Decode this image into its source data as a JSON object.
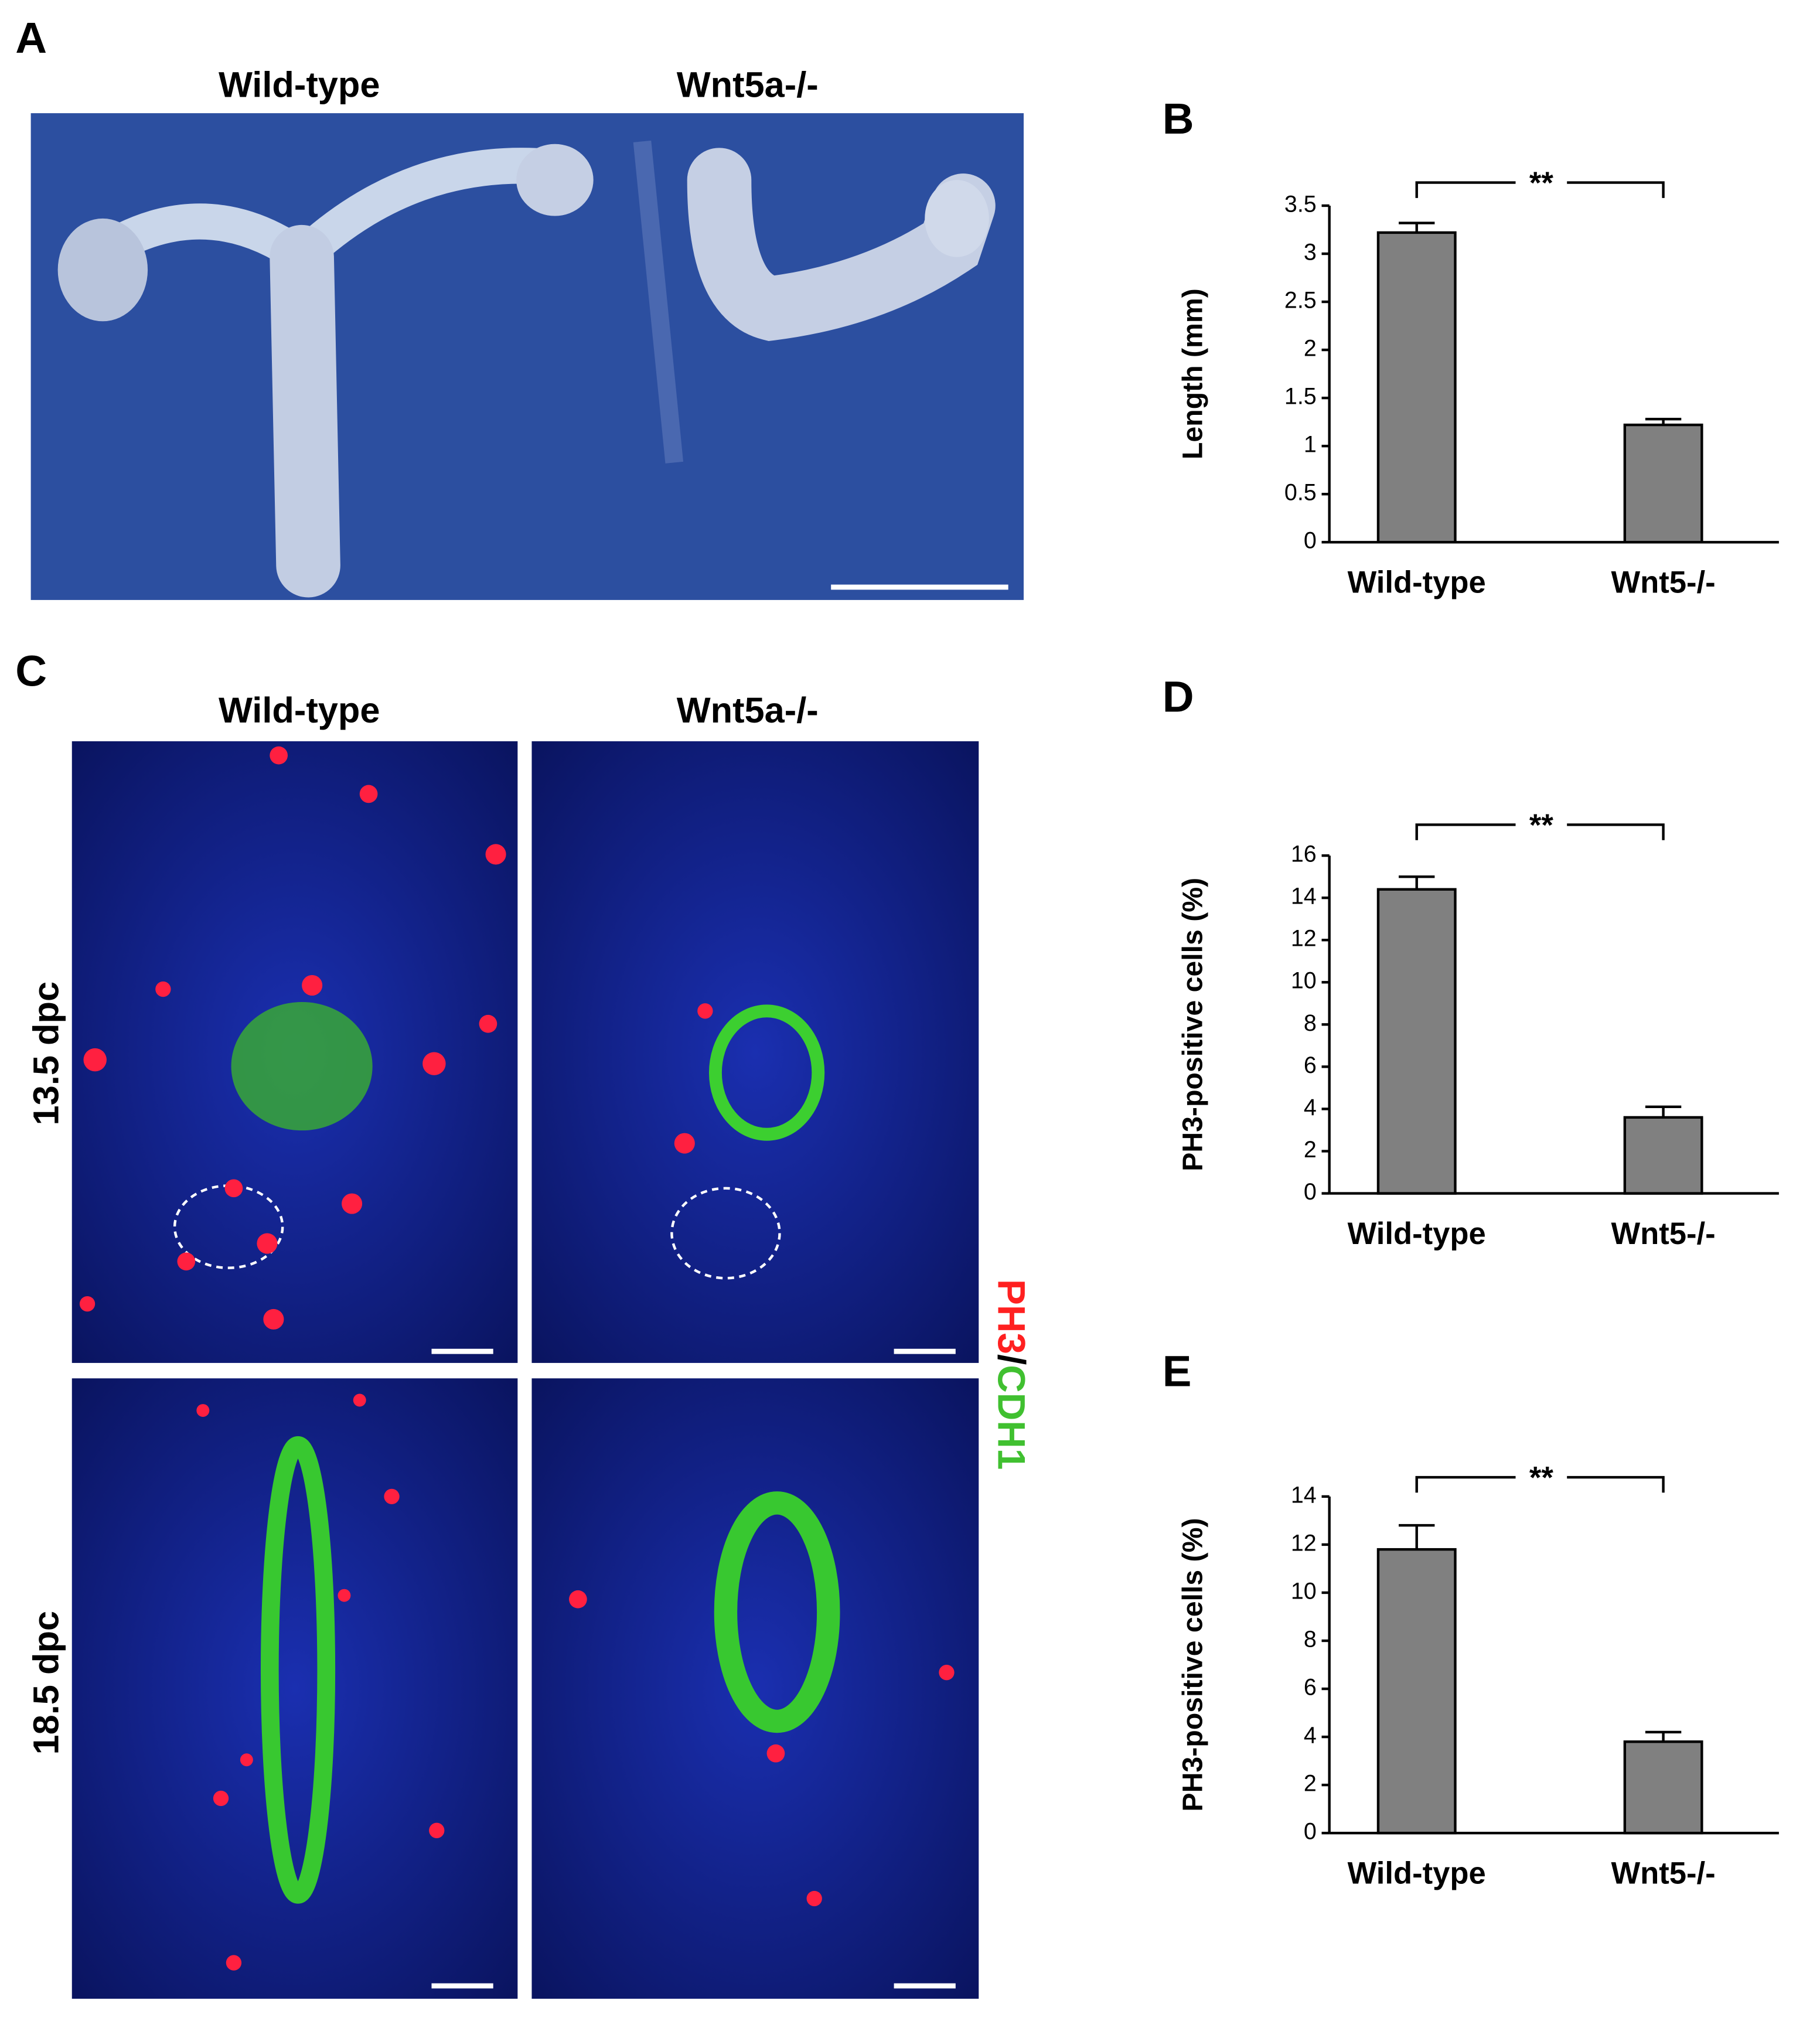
{
  "panels": {
    "a": {
      "label": "A",
      "columns": [
        "Wild-type",
        "Wnt5a-/-"
      ]
    },
    "b": {
      "label": "B"
    },
    "c": {
      "label": "C",
      "columns": [
        "Wild-type",
        "Wnt5a-/-"
      ],
      "rows": [
        "13.5 dpc",
        "18.5 dpc"
      ],
      "stain": [
        "PH3",
        "/",
        "CDH1"
      ]
    },
    "d": {
      "label": "D"
    },
    "e": {
      "label": "E"
    }
  },
  "chart_data": [
    {
      "type": "bar",
      "ylabel": "Length (mm)",
      "categories": [
        "Wild-type",
        "Wnt5-/-"
      ],
      "values": [
        3.22,
        1.22
      ],
      "errors": [
        0.1,
        0.06
      ],
      "color": "#808080",
      "ylim": [
        0,
        3.5
      ],
      "yticks": [
        0,
        0.5,
        1,
        1.5,
        2,
        2.5,
        3,
        3.5
      ],
      "annotation": "**"
    },
    {
      "type": "bar",
      "ylabel": "PH3-positive cells (%)",
      "categories": [
        "Wild-type",
        "Wnt5-/-"
      ],
      "values": [
        14.4,
        3.6
      ],
      "errors": [
        0.6,
        0.5
      ],
      "color": "#808080",
      "ylim": [
        0,
        16
      ],
      "yticks": [
        0,
        2,
        4,
        6,
        8,
        10,
        12,
        14,
        16
      ],
      "annotation": "**"
    },
    {
      "type": "bar",
      "ylabel": "PH3-positive cells (%)",
      "categories": [
        "Wild-type",
        "Wnt5-/-"
      ],
      "values": [
        11.8,
        3.8
      ],
      "errors": [
        1.0,
        0.4
      ],
      "color": "#808080",
      "ylim": [
        0,
        14
      ],
      "yticks": [
        0,
        2,
        4,
        6,
        8,
        10,
        12,
        14
      ],
      "annotation": "**"
    }
  ]
}
